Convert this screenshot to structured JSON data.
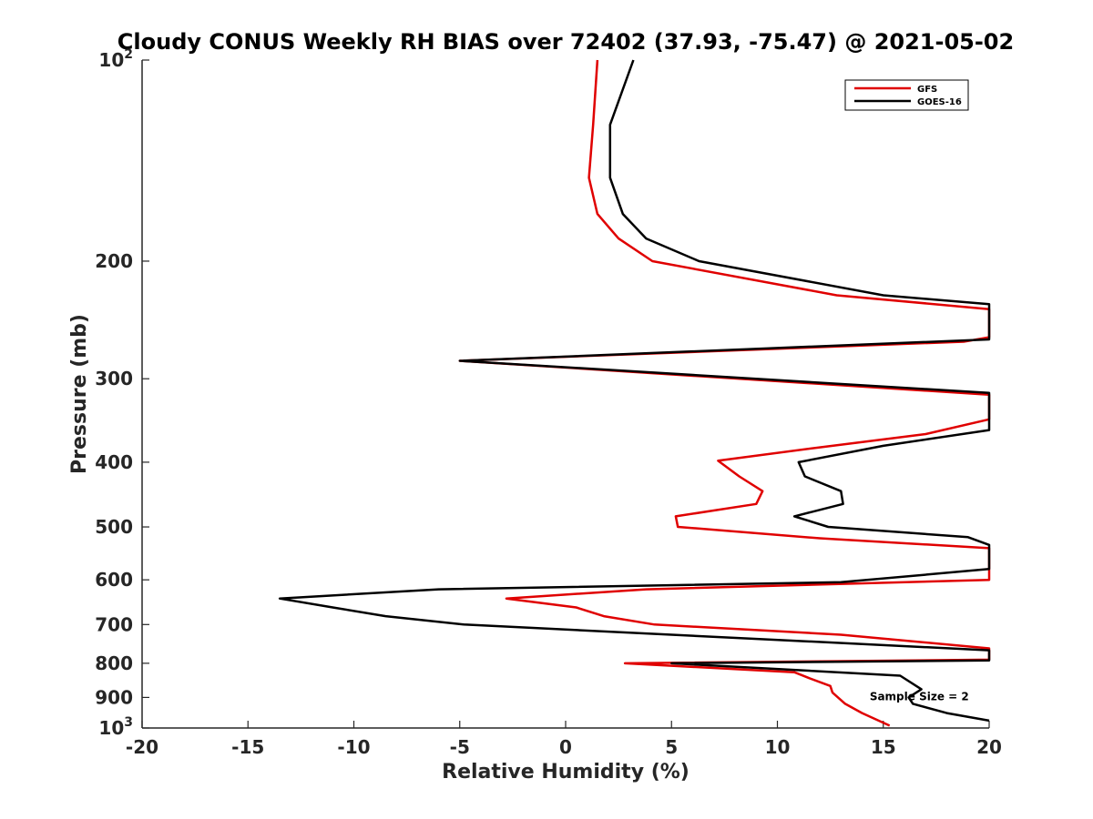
{
  "chart_data": {
    "type": "line",
    "title": "Cloudy CONUS Weekly RH BIAS over 72402 (37.93, -75.47) @ 2021-05-02",
    "xlabel": "Relative Humidity (%)",
    "ylabel": "Pressure (mb)",
    "xlim": [
      -20,
      20
    ],
    "ylim": [
      100,
      1000
    ],
    "y_scale": "log",
    "y_reversed": true,
    "grid": false,
    "legend_position": "top-right",
    "x_ticks": [
      "-20",
      "-15",
      "-10",
      "-5",
      "0",
      "5",
      "10",
      "15",
      "20"
    ],
    "y_ticks": [
      {
        "value": 100,
        "base": "10",
        "exp": "2"
      },
      {
        "value": 200,
        "label": "200"
      },
      {
        "value": 300,
        "label": "300"
      },
      {
        "value": 400,
        "label": "400"
      },
      {
        "value": 500,
        "label": "500"
      },
      {
        "value": 600,
        "label": "600"
      },
      {
        "value": 700,
        "label": "700"
      },
      {
        "value": 800,
        "label": "800"
      },
      {
        "value": 900,
        "label": "900"
      },
      {
        "value": 1000,
        "base": "10",
        "exp": "3"
      }
    ],
    "series": [
      {
        "name": "GFS",
        "color": "#e00000",
        "points": [
          [
            1.5,
            100
          ],
          [
            1.3,
            125
          ],
          [
            1.1,
            150
          ],
          [
            1.5,
            170
          ],
          [
            2.5,
            185
          ],
          [
            4.1,
            200
          ],
          [
            12.8,
            225
          ],
          [
            20,
            236
          ],
          [
            20,
            260
          ],
          [
            18.8,
            264
          ],
          [
            -5,
            282
          ],
          [
            20,
            317
          ],
          [
            20,
            345
          ],
          [
            17,
            363
          ],
          [
            12,
            380
          ],
          [
            7.2,
            398
          ],
          [
            8.2,
            420
          ],
          [
            9.3,
            442
          ],
          [
            9.0,
            462
          ],
          [
            5.2,
            482
          ],
          [
            5.3,
            500
          ],
          [
            12,
            520
          ],
          [
            20,
            538
          ],
          [
            20,
            600
          ],
          [
            3.8,
            620
          ],
          [
            -2.8,
            640
          ],
          [
            0.5,
            660
          ],
          [
            1.8,
            680
          ],
          [
            4.2,
            700
          ],
          [
            13,
            725
          ],
          [
            20,
            760
          ],
          [
            20,
            790
          ],
          [
            2.8,
            800
          ],
          [
            10.8,
            825
          ],
          [
            11.5,
            842
          ],
          [
            12.5,
            865
          ],
          [
            12.6,
            885
          ],
          [
            13.2,
            920
          ],
          [
            14,
            950
          ],
          [
            15.3,
            992
          ]
        ]
      },
      {
        "name": "GOES-16",
        "color": "#000000",
        "points": [
          [
            3.2,
            100
          ],
          [
            2.1,
            125
          ],
          [
            2.1,
            150
          ],
          [
            2.7,
            170
          ],
          [
            3.8,
            185
          ],
          [
            6.3,
            200
          ],
          [
            15,
            225
          ],
          [
            20,
            232
          ],
          [
            20,
            262
          ],
          [
            -5,
            282
          ],
          [
            20,
            315
          ],
          [
            20,
            358
          ],
          [
            15,
            378
          ],
          [
            11,
            400
          ],
          [
            11.3,
            420
          ],
          [
            13,
            442
          ],
          [
            13.1,
            462
          ],
          [
            10.8,
            482
          ],
          [
            12.4,
            500
          ],
          [
            19,
            518
          ],
          [
            20,
            532
          ],
          [
            20,
            578
          ],
          [
            13,
            605
          ],
          [
            -6,
            620
          ],
          [
            -13.5,
            640
          ],
          [
            -11,
            660
          ],
          [
            -8.5,
            680
          ],
          [
            -4.8,
            700
          ],
          [
            20,
            765
          ],
          [
            20,
            792
          ],
          [
            5,
            800
          ],
          [
            15.8,
            835
          ],
          [
            16.8,
            875
          ],
          [
            16.2,
            900
          ],
          [
            16.4,
            920
          ],
          [
            18,
            950
          ],
          [
            20,
            975
          ]
        ]
      }
    ],
    "annotations": [
      {
        "text": "Sample Size = 2",
        "x": 16.7,
        "y": 897
      }
    ]
  }
}
